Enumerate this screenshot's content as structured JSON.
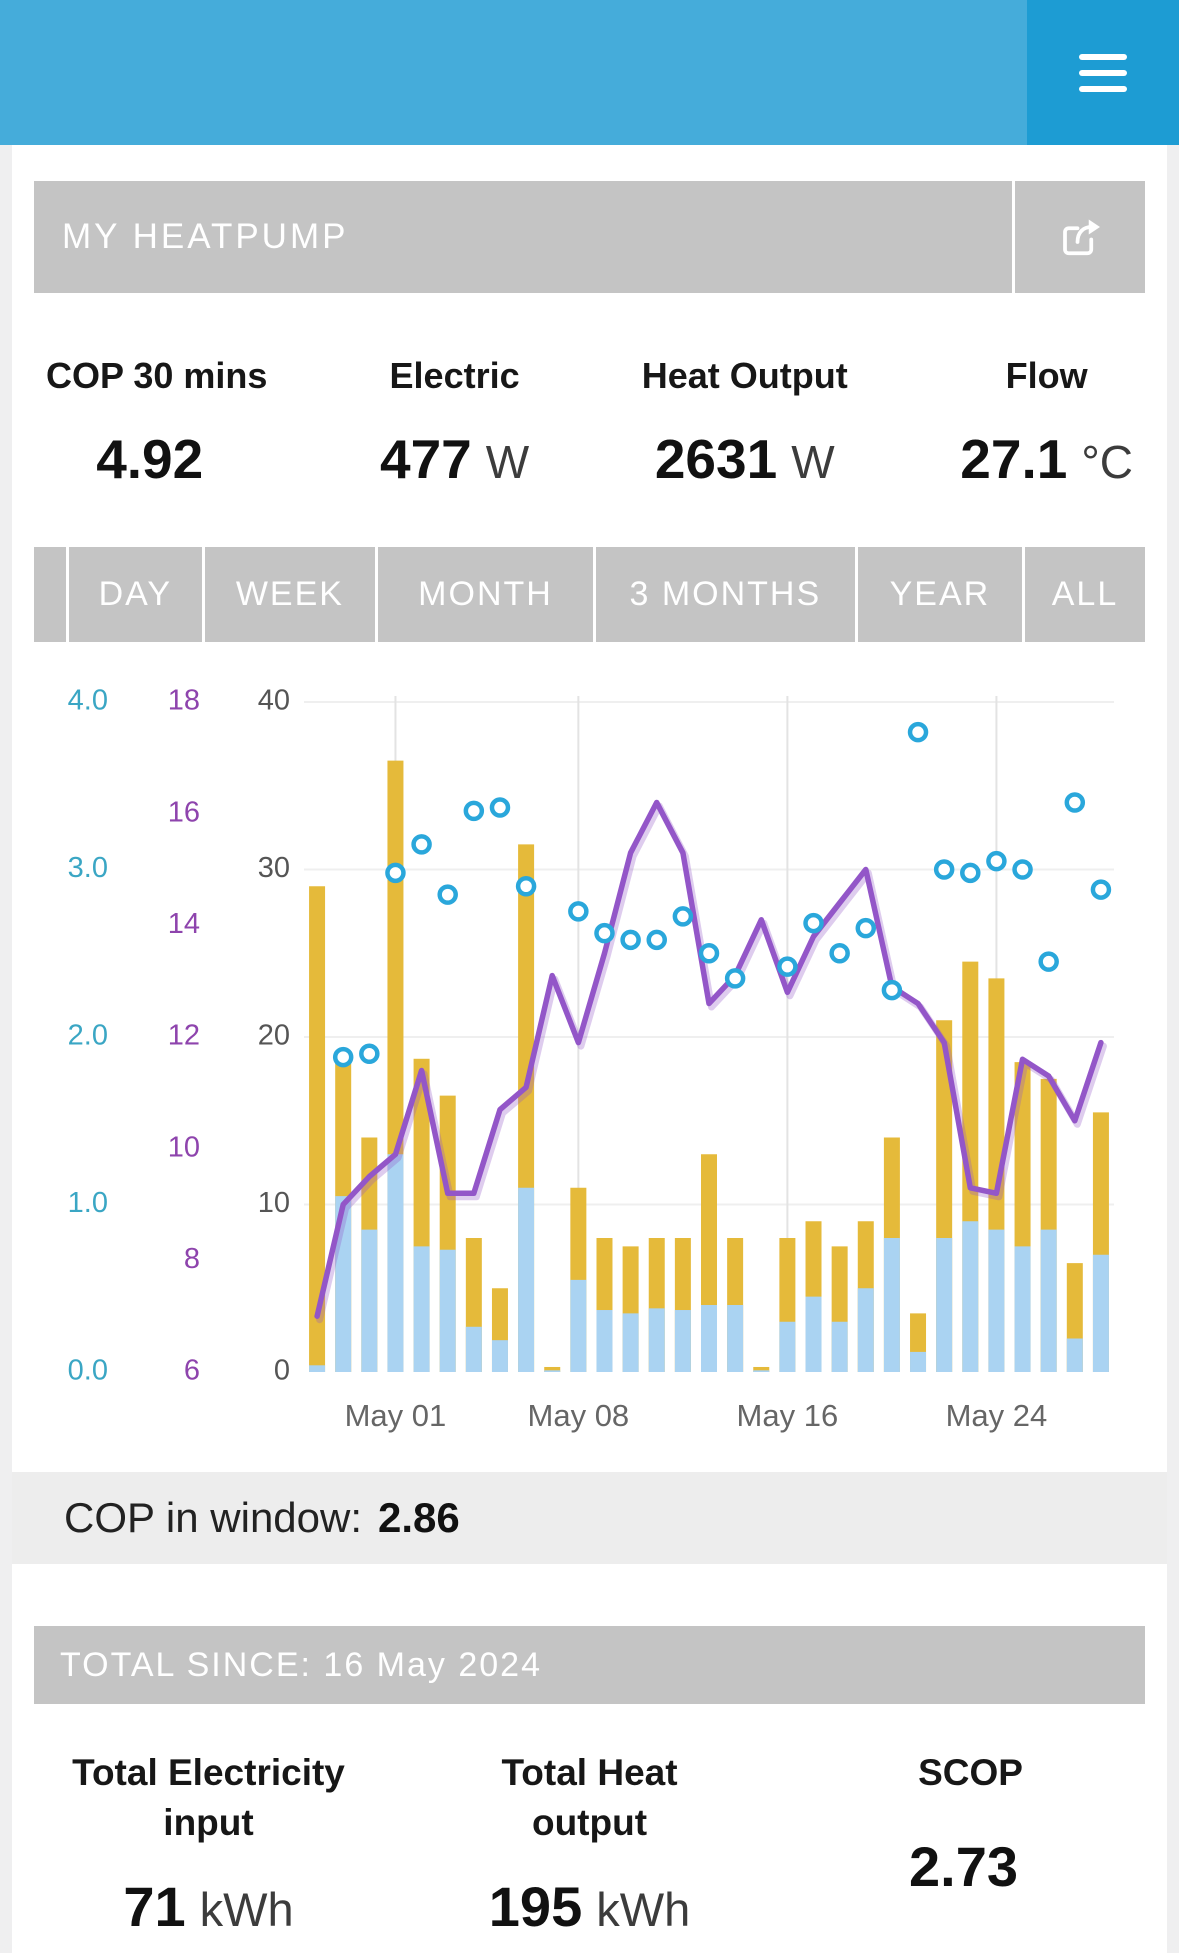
{
  "header": {
    "background": "#45acda",
    "menu_background": "#1d9cd3",
    "icons": {
      "menu": "hamburger-icon",
      "share": "share-icon"
    }
  },
  "card": {
    "title": "MY HEATPUMP"
  },
  "stats": [
    {
      "label": "COP 30 mins",
      "value": "4.92",
      "unit": ""
    },
    {
      "label": "Electric",
      "value": "477",
      "unit": "W"
    },
    {
      "label": "Heat Output",
      "value": "2631",
      "unit": "W"
    },
    {
      "label": "Flow",
      "value": "27.1",
      "unit": "°C"
    }
  ],
  "tabs": [
    {
      "label": "DAY"
    },
    {
      "label": "WEEK"
    },
    {
      "label": "MONTH"
    },
    {
      "label": "3 MONTHS"
    },
    {
      "label": "YEAR"
    },
    {
      "label": "ALL"
    }
  ],
  "chart_data": {
    "type": "bar",
    "subtype": "composite-bar-line-scatter",
    "days": [
      "Apr 28",
      "Apr 29",
      "Apr 30",
      "May 01",
      "May 02",
      "May 03",
      "May 04",
      "May 05",
      "May 06",
      "May 07",
      "May 08",
      "May 09",
      "May 10",
      "May 11",
      "May 12",
      "May 13",
      "May 14",
      "May 15",
      "May 16",
      "May 17",
      "May 18",
      "May 19",
      "May 20",
      "May 21",
      "May 22",
      "May 23",
      "May 24",
      "May 25",
      "May 26",
      "May 27",
      "May 28"
    ],
    "x_labels": [
      "May 01",
      "May 08",
      "May 16",
      "May 24"
    ],
    "x_tick_indices": [
      3,
      10,
      18,
      26
    ],
    "series": [
      {
        "name": "heat_kwh",
        "type": "bar",
        "axis": "energy",
        "color": "#e5ba3a",
        "values": [
          29,
          18.5,
          14,
          36.5,
          18.7,
          16.5,
          8,
          5,
          31.5,
          0.3,
          11,
          8,
          7.5,
          8,
          8,
          13,
          8,
          0.3,
          8,
          9,
          7.5,
          9,
          14,
          3.5,
          21,
          24.5,
          23.5,
          18.5,
          17.5,
          6.5,
          15.5
        ]
      },
      {
        "name": "electric_kwh",
        "type": "bar",
        "axis": "energy",
        "color": "#aad3f2",
        "values": [
          0.4,
          10.5,
          8.5,
          13,
          7.5,
          7.3,
          2.7,
          1.9,
          11,
          0.1,
          5.5,
          3.7,
          3.5,
          3.8,
          3.7,
          4,
          4,
          0.1,
          3,
          4.5,
          3,
          5,
          8,
          1.2,
          8,
          9,
          8.5,
          7.5,
          8.5,
          2,
          7
        ]
      },
      {
        "name": "outside_temp",
        "type": "line",
        "axis": "temp",
        "color": "#9356c8",
        "values": [
          7.0,
          9.0,
          9.5,
          9.9,
          11.4,
          9.2,
          9.2,
          10.7,
          11.1,
          13.1,
          11.9,
          13.5,
          15.3,
          16.2,
          15.3,
          12.6,
          13.1,
          14.1,
          12.8,
          13.8,
          14.4,
          15.0,
          12.9,
          12.6,
          11.9,
          9.3,
          9.2,
          11.6,
          11.3,
          10.5,
          11.9
        ]
      },
      {
        "name": "cop",
        "type": "scatter",
        "axis": "cop",
        "color": "#2aa7db",
        "values": [
          null,
          1.88,
          1.9,
          2.98,
          3.15,
          2.85,
          3.35,
          3.37,
          2.9,
          null,
          2.75,
          2.62,
          2.58,
          2.58,
          2.72,
          2.5,
          2.35,
          null,
          2.42,
          2.68,
          2.5,
          2.65,
          2.28,
          3.82,
          3.0,
          2.98,
          3.05,
          3.0,
          2.45,
          3.4,
          2.88
        ]
      }
    ],
    "axes": {
      "cop": {
        "ticks": [
          "0.0",
          "1.0",
          "2.0",
          "3.0",
          "4.0"
        ],
        "range": [
          0,
          4
        ],
        "color": "#3aa6c4"
      },
      "temp": {
        "ticks": [
          6,
          8,
          10,
          12,
          14,
          16,
          18
        ],
        "range": [
          6,
          18
        ],
        "color": "#8e44ad"
      },
      "energy": {
        "ticks": [
          0,
          10,
          20,
          30,
          40
        ],
        "range": [
          0,
          40
        ],
        "color": "#555555"
      }
    },
    "grid": true,
    "legend": "none"
  },
  "cop_window": {
    "label": "COP in window:",
    "value": "2.86"
  },
  "totals": {
    "title": "TOTAL SINCE: 16 May 2024",
    "items": [
      {
        "label": "Total Electricity input",
        "value": "71",
        "unit": "kWh"
      },
      {
        "label": "Total Heat output",
        "value": "195",
        "unit": "kWh"
      },
      {
        "label": "SCOP",
        "value": "2.73",
        "unit": ""
      }
    ]
  }
}
